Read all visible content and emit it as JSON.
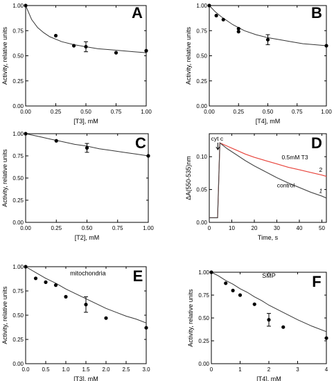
{
  "chart_data": [
    {
      "panel": "A",
      "type": "scatter",
      "xlabel": "[T3], mM",
      "ylabel": "Activity, relative units",
      "xlim": [
        0,
        1.0
      ],
      "ylim": [
        0,
        1.0
      ],
      "xticks": [
        "0.00",
        "0.25",
        "0.50",
        "0.75",
        "1.00"
      ],
      "yticks": [
        "0.00",
        "0.25",
        "0.50",
        "0.75",
        "1.00"
      ],
      "x": [
        0,
        0.25,
        0.4,
        0.5,
        0.75,
        1.0
      ],
      "y": [
        1.0,
        0.7,
        0.6,
        0.59,
        0.53,
        0.55
      ],
      "yerr": [
        0,
        0,
        0,
        0.05,
        0,
        0
      ],
      "fit": {
        "x": [
          0,
          0.05,
          0.1,
          0.15,
          0.2,
          0.3,
          0.4,
          0.5,
          0.6,
          0.7,
          0.8,
          0.9,
          1.0
        ],
        "y": [
          1.0,
          0.86,
          0.78,
          0.73,
          0.69,
          0.64,
          0.61,
          0.59,
          0.57,
          0.56,
          0.55,
          0.54,
          0.53
        ]
      }
    },
    {
      "panel": "B",
      "type": "scatter",
      "xlabel": "[T4], mM",
      "ylabel": "Activity, relative units",
      "xlim": [
        0,
        1.0
      ],
      "ylim": [
        0,
        1.0
      ],
      "xticks": [
        "0.00",
        "0.25",
        "0.50",
        "0.75",
        "1.00"
      ],
      "yticks": [
        "0.00",
        "0.25",
        "0.50",
        "0.75",
        "1.00"
      ],
      "x": [
        0,
        0.06,
        0.12,
        0.25,
        0.25,
        0.5,
        1.0
      ],
      "y": [
        1.0,
        0.9,
        0.86,
        0.77,
        0.74,
        0.66,
        0.6
      ],
      "yerr": [
        0,
        0,
        0,
        0,
        0,
        0.05,
        0
      ],
      "fit": {
        "x": [
          0,
          0.05,
          0.1,
          0.2,
          0.3,
          0.4,
          0.5,
          0.6,
          0.7,
          0.8,
          0.9,
          1.0
        ],
        "y": [
          1.0,
          0.94,
          0.89,
          0.81,
          0.75,
          0.71,
          0.68,
          0.66,
          0.64,
          0.62,
          0.61,
          0.6
        ]
      }
    },
    {
      "panel": "C",
      "type": "scatter",
      "xlabel": "[T2], mM",
      "ylabel": "Activity, relative units",
      "xlim": [
        0,
        1.0
      ],
      "ylim": [
        0,
        1.0
      ],
      "xticks": [
        "0.00",
        "0.25",
        "0.50",
        "0.75",
        "1.00"
      ],
      "yticks": [
        "0.00",
        "0.25",
        "0.50",
        "0.75",
        "1.00"
      ],
      "x": [
        0,
        0.25,
        0.5,
        1.0
      ],
      "y": [
        1.0,
        0.92,
        0.84,
        0.75
      ],
      "yerr": [
        0,
        0,
        0.05,
        0
      ],
      "fit": {
        "x": [
          0,
          0.1,
          0.2,
          0.3,
          0.4,
          0.5,
          0.6,
          0.7,
          0.8,
          0.9,
          1.0
        ],
        "y": [
          1.0,
          0.97,
          0.94,
          0.91,
          0.88,
          0.86,
          0.83,
          0.81,
          0.79,
          0.77,
          0.75
        ]
      }
    },
    {
      "panel": "D",
      "type": "line",
      "xlabel": "Time, s",
      "ylabel": "ΔA(550-535)nm",
      "xlim": [
        0,
        52
      ],
      "ylim": [
        0,
        0.135
      ],
      "xticks": [
        "0",
        "10",
        "20",
        "30",
        "40",
        "50"
      ],
      "yticks": [
        "0.00",
        "0.05",
        "0.10"
      ],
      "annotations": [
        "cyt c",
        "0.5mM T3",
        "2",
        "control",
        "1"
      ],
      "series": [
        {
          "name": "0.5mM T3",
          "color": "#e8433b",
          "x": [
            0,
            3.7,
            4.7,
            8,
            12,
            16,
            20,
            25,
            30,
            35,
            40,
            45,
            50,
            52
          ],
          "y": [
            0.007,
            0.007,
            0.121,
            0.116,
            0.11,
            0.104,
            0.099,
            0.094,
            0.089,
            0.084,
            0.08,
            0.076,
            0.072,
            0.07
          ]
        },
        {
          "name": "control",
          "color": "#4a4a4a",
          "x": [
            0,
            3.7,
            4.7,
            8,
            12,
            16,
            20,
            25,
            30,
            35,
            40,
            45,
            50,
            52
          ],
          "y": [
            0.007,
            0.007,
            0.121,
            0.112,
            0.103,
            0.094,
            0.086,
            0.077,
            0.068,
            0.06,
            0.053,
            0.046,
            0.04,
            0.037
          ]
        }
      ]
    },
    {
      "panel": "E",
      "type": "scatter",
      "xlabel": "[T3], mM",
      "ylabel": "Activity, relative units",
      "xlim": [
        0,
        3.0
      ],
      "ylim": [
        0,
        1.0
      ],
      "xticks": [
        "0.0",
        "0.5",
        "1.0",
        "1.5",
        "2.0",
        "2.5",
        "3.0"
      ],
      "yticks": [
        "0.00",
        "0.25",
        "0.50",
        "0.75",
        "1.00"
      ],
      "annotations": [
        "mitochondria"
      ],
      "x": [
        0,
        0.25,
        0.5,
        0.75,
        1.0,
        1.5,
        2.0,
        3.0
      ],
      "y": [
        1.0,
        0.88,
        0.84,
        0.81,
        0.69,
        0.61,
        0.47,
        0.37
      ],
      "yerr": [
        0,
        0,
        0,
        0,
        0,
        0.08,
        0,
        0
      ],
      "fit": {
        "x": [
          0,
          0.25,
          0.5,
          0.75,
          1.0,
          1.25,
          1.5,
          1.75,
          2.0,
          2.25,
          2.5,
          2.75,
          3.0
        ],
        "y": [
          1.0,
          0.94,
          0.88,
          0.83,
          0.77,
          0.72,
          0.67,
          0.62,
          0.57,
          0.53,
          0.49,
          0.46,
          0.42
        ]
      }
    },
    {
      "panel": "F",
      "type": "scatter",
      "xlabel": "[T4], mM",
      "ylabel": "Activity, relative units",
      "xlim": [
        0,
        4.0
      ],
      "ylim": [
        0,
        1.0
      ],
      "xticks": [
        "0",
        "1",
        "2",
        "3",
        "4"
      ],
      "yticks": [
        "0.00",
        "0.25",
        "0.50",
        "0.75",
        "1.00"
      ],
      "annotations": [
        "SMP"
      ],
      "x": [
        0,
        0.5,
        0.75,
        1.0,
        1.5,
        2.0,
        2.5,
        4.0
      ],
      "y": [
        1.0,
        0.88,
        0.8,
        0.75,
        0.65,
        0.48,
        0.4,
        0.28
      ],
      "yerr": [
        0,
        0,
        0,
        0,
        0,
        0.07,
        0,
        0
      ],
      "fit": {
        "x": [
          0,
          0.25,
          0.5,
          0.75,
          1.0,
          1.25,
          1.5,
          1.75,
          2.0,
          2.5,
          3.0,
          3.5,
          4.0
        ],
        "y": [
          1.0,
          0.96,
          0.91,
          0.87,
          0.82,
          0.78,
          0.73,
          0.69,
          0.64,
          0.56,
          0.48,
          0.41,
          0.35
        ]
      }
    }
  ]
}
